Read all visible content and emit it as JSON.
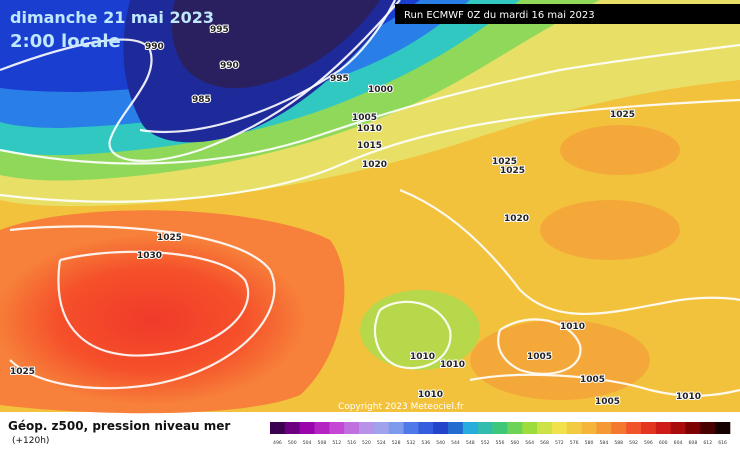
{
  "header": {
    "date": "dimanche 21 mai 2023",
    "time": "2:00 locale",
    "run": "Run ECMWF 0Z du mardi 16 mai 2023"
  },
  "isobar_labels": [
    990,
    995,
    990,
    985,
    995,
    1000,
    1005,
    1010,
    1015,
    1020,
    1025,
    1030,
    1025,
    1025,
    1025,
    1025,
    1020,
    1010,
    1010,
    1010,
    1005,
    1005,
    1005,
    1010,
    1010
  ],
  "copyright": "Copyright 2023 Meteociel.fr",
  "legend": {
    "title": "Géop. z500, pression niveau mer",
    "lead": "(+120h)",
    "scale": [
      496,
      500,
      504,
      508,
      512,
      516,
      520,
      524,
      528,
      532,
      536,
      540,
      544,
      548,
      552,
      556,
      560,
      564,
      568,
      572,
      576,
      580,
      584,
      588,
      592,
      596,
      600,
      604,
      608,
      612,
      616
    ]
  }
}
